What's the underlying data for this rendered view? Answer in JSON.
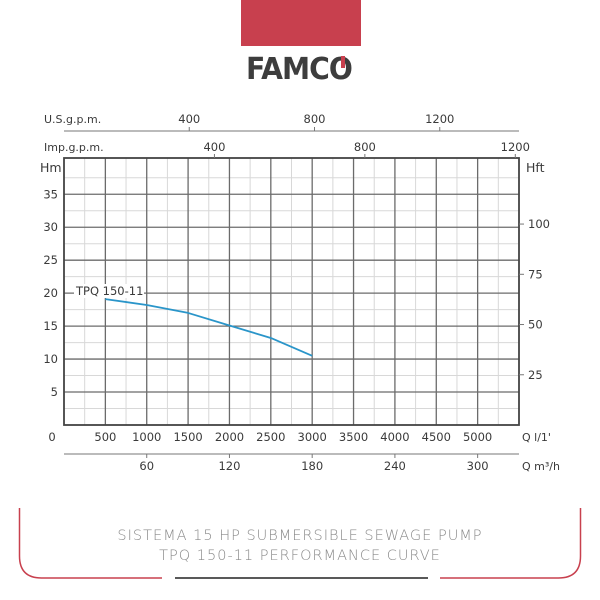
{
  "header": {
    "brand": "FAMCO",
    "brand_color": "#c8404e",
    "logo_text_color": "#3d3d3d"
  },
  "caption": {
    "line1": "SISTEMA 15 HP SUBMERSIBLE SEWAGE PUMP",
    "line2": "TPQ 150-11 PERFORMANCE CURVE"
  },
  "colors": {
    "curve": "#2a95c9",
    "frame": "#c8404e",
    "grid_major": "#6b6b6b",
    "grid_minor": "#d8d8d8",
    "text": "#3a3a3a"
  },
  "chart_data": {
    "type": "line",
    "title": "TPQ 150-11 Performance Curve",
    "xlabel": "Q l/1'",
    "ylabel": "Hm",
    "xlim": [
      0,
      5500
    ],
    "ylim": [
      0,
      40.5
    ],
    "grid": true,
    "x_ticks": [
      0,
      500,
      1000,
      1500,
      2000,
      2500,
      3000,
      3500,
      4000,
      4500,
      5000
    ],
    "y_ticks": [
      5,
      10,
      15,
      20,
      25,
      30,
      35
    ],
    "secondary_axes": {
      "us_gpm": {
        "label": "U.S.g.p.m.",
        "ticks": [
          400,
          800,
          1200
        ]
      },
      "imp_gpm": {
        "label": "Imp.g.p.m.",
        "ticks": [
          400,
          800,
          1200
        ]
      },
      "m3h": {
        "label": "Q m³/h",
        "ticks": [
          60,
          120,
          180,
          240,
          300
        ]
      },
      "hft": {
        "label": "Hft",
        "ticks": [
          25,
          50,
          75,
          100
        ]
      }
    },
    "series": [
      {
        "name": "TPQ 150-11",
        "x": [
          500,
          1000,
          1500,
          2000,
          2500,
          3000
        ],
        "values": [
          19.1,
          18.2,
          17.0,
          15.1,
          13.2,
          10.5
        ]
      }
    ]
  }
}
